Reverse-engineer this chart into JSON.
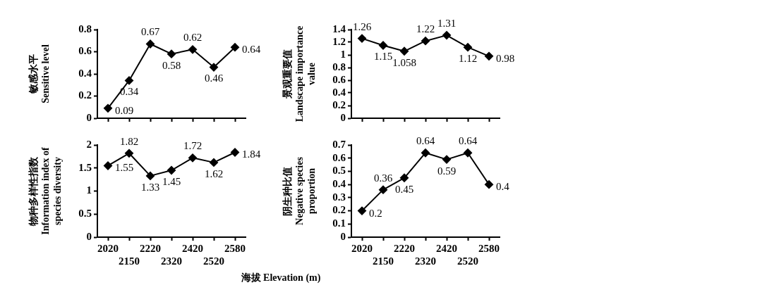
{
  "chart_data": [
    {
      "type": "line",
      "ylabel": "敏感水平 Sensitive level",
      "categories": [
        "2020",
        "2150",
        "2220",
        "2320",
        "2420",
        "2520",
        "2580"
      ],
      "tick_labels": "y",
      "series": [
        {
          "color": "#000000",
          "values": [
            0.09,
            0.34,
            0.67,
            0.58,
            0.62,
            0.46,
            0.64
          ]
        }
      ],
      "ylim": [
        0,
        0.8
      ],
      "yticks": [
        0,
        0.2,
        0.4,
        0.6,
        0.8
      ],
      "marker": "diamond",
      "line_style": "solid",
      "data_labels": true,
      "grid": false
    },
    {
      "type": "line",
      "ylabel": "景观重要值 Landscape importance value",
      "categories": [
        "2020",
        "2150",
        "2220",
        "2320",
        "2420",
        "2520",
        "2580"
      ],
      "tick_labels": "y",
      "series": [
        {
          "color": "#000000",
          "values": [
            1.26,
            1.15,
            1.058,
            1.22,
            1.31,
            1.12,
            0.98
          ]
        }
      ],
      "ylim": [
        0,
        1.4
      ],
      "yticks": [
        0,
        0.2,
        0.4,
        0.6,
        0.8,
        1.0,
        1.2,
        1.4
      ],
      "marker": "diamond",
      "line_style": "solid",
      "data_labels": true,
      "grid": false
    },
    {
      "type": "line",
      "ylabel": "物种多样性指数 Information index of species diversity",
      "xlabel": "海拔 Elevation (m)",
      "categories": [
        "2020",
        "2150",
        "2220",
        "2320",
        "2420",
        "2520",
        "2580"
      ],
      "series": [
        {
          "color": "#000000",
          "values": [
            1.55,
            1.82,
            1.33,
            1.45,
            1.72,
            1.62,
            1.84
          ]
        }
      ],
      "ylim": [
        0,
        2.0
      ],
      "yticks": [
        0,
        0.5,
        1.0,
        1.5,
        2.0
      ],
      "marker": "diamond",
      "line_style": "solid",
      "data_labels": true,
      "grid": false
    },
    {
      "type": "line",
      "ylabel": "阴生种比值 Negative species proportion",
      "categories": [
        "2020",
        "2150",
        "2220",
        "2320",
        "2420",
        "2520",
        "2580"
      ],
      "series": [
        {
          "color": "#000000",
          "values": [
            0.2,
            0.36,
            0.45,
            0.64,
            0.59,
            0.64,
            0.4
          ]
        }
      ],
      "ylim": [
        0,
        0.7
      ],
      "yticks": [
        0,
        0.1,
        0.2,
        0.3,
        0.4,
        0.5,
        0.6,
        0.7
      ],
      "marker": "diamond",
      "line_style": "solid",
      "data_labels": true,
      "grid": false
    }
  ]
}
